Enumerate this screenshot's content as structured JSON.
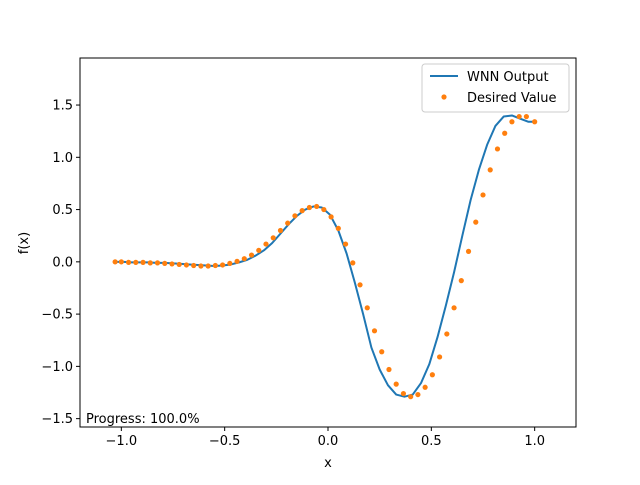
{
  "colors": {
    "line": "#1f77b4",
    "points": "#ff7f0e",
    "axes": "#000000",
    "legend_border": "#cccccc",
    "background": "#ffffff"
  },
  "progress_text": "Progress: 100.0%",
  "chart_data": {
    "type": "line",
    "title": "",
    "xlabel": "x",
    "ylabel": "f(x)",
    "xlim": [
      -1.2,
      1.2
    ],
    "ylim": [
      -1.58,
      1.95
    ],
    "xticks": [
      -1.0,
      -0.5,
      0.0,
      0.5,
      1.0
    ],
    "xtick_labels": [
      "−1.0",
      "−0.5",
      "0.0",
      "0.5",
      "1.0"
    ],
    "yticks": [
      -1.5,
      -1.0,
      -0.5,
      0.0,
      0.5,
      1.0,
      1.5
    ],
    "ytick_labels": [
      "−1.5",
      "−1.0",
      "−0.5",
      "0.0",
      "0.5",
      "1.0",
      "1.5"
    ],
    "grid": false,
    "legend_position": "upper right",
    "series": [
      {
        "name": "WNN Output",
        "kind": "line",
        "color": "#1f77b4",
        "x": [
          -1.03,
          -0.99,
          -0.95,
          -0.91,
          -0.87,
          -0.83,
          -0.79,
          -0.75,
          -0.71,
          -0.67,
          -0.63,
          -0.59,
          -0.55,
          -0.51,
          -0.47,
          -0.43,
          -0.39,
          -0.35,
          -0.31,
          -0.27,
          -0.23,
          -0.19,
          -0.15,
          -0.11,
          -0.07,
          -0.03,
          0.01,
          0.05,
          0.09,
          0.13,
          0.17,
          0.21,
          0.25,
          0.29,
          0.33,
          0.37,
          0.41,
          0.45,
          0.49,
          0.53,
          0.57,
          0.61,
          0.65,
          0.69,
          0.73,
          0.77,
          0.81,
          0.85,
          0.89,
          0.93,
          0.97,
          1.0
        ],
        "y": [
          0.0,
          0.0,
          -0.005,
          -0.005,
          -0.005,
          -0.01,
          -0.01,
          -0.015,
          -0.02,
          -0.025,
          -0.03,
          -0.035,
          -0.04,
          -0.035,
          -0.025,
          -0.005,
          0.02,
          0.06,
          0.11,
          0.18,
          0.27,
          0.36,
          0.44,
          0.5,
          0.53,
          0.52,
          0.45,
          0.3,
          0.08,
          -0.2,
          -0.5,
          -0.82,
          -1.03,
          -1.18,
          -1.27,
          -1.29,
          -1.27,
          -1.16,
          -0.98,
          -0.72,
          -0.42,
          -0.1,
          0.25,
          0.59,
          0.88,
          1.12,
          1.3,
          1.39,
          1.4,
          1.37,
          1.34,
          1.34
        ]
      },
      {
        "name": "Desired Value",
        "kind": "points",
        "color": "#ff7f0e",
        "x": [
          -1.03,
          -1.0,
          -0.965,
          -0.93,
          -0.895,
          -0.86,
          -0.825,
          -0.79,
          -0.755,
          -0.72,
          -0.685,
          -0.65,
          -0.615,
          -0.58,
          -0.545,
          -0.51,
          -0.475,
          -0.44,
          -0.405,
          -0.37,
          -0.335,
          -0.3,
          -0.265,
          -0.23,
          -0.195,
          -0.16,
          -0.125,
          -0.09,
          -0.055,
          -0.02,
          0.015,
          0.05,
          0.085,
          0.12,
          0.155,
          0.19,
          0.225,
          0.26,
          0.295,
          0.33,
          0.365,
          0.4,
          0.435,
          0.47,
          0.505,
          0.54,
          0.575,
          0.61,
          0.645,
          0.68,
          0.715,
          0.75,
          0.785,
          0.82,
          0.855,
          0.89,
          0.925,
          0.96,
          1.0
        ],
        "y": [
          0.0,
          0.0,
          -0.005,
          -0.005,
          -0.005,
          -0.01,
          -0.01,
          -0.015,
          -0.02,
          -0.025,
          -0.03,
          -0.035,
          -0.04,
          -0.04,
          -0.035,
          -0.03,
          -0.015,
          0.005,
          0.03,
          0.065,
          0.11,
          0.17,
          0.23,
          0.3,
          0.37,
          0.44,
          0.49,
          0.52,
          0.53,
          0.5,
          0.43,
          0.32,
          0.17,
          -0.01,
          -0.22,
          -0.44,
          -0.66,
          -0.86,
          -1.03,
          -1.17,
          -1.26,
          -1.29,
          -1.27,
          -1.2,
          -1.08,
          -0.91,
          -0.69,
          -0.44,
          -0.18,
          0.1,
          0.38,
          0.64,
          0.88,
          1.08,
          1.23,
          1.34,
          1.39,
          1.39,
          1.34
        ]
      }
    ]
  }
}
